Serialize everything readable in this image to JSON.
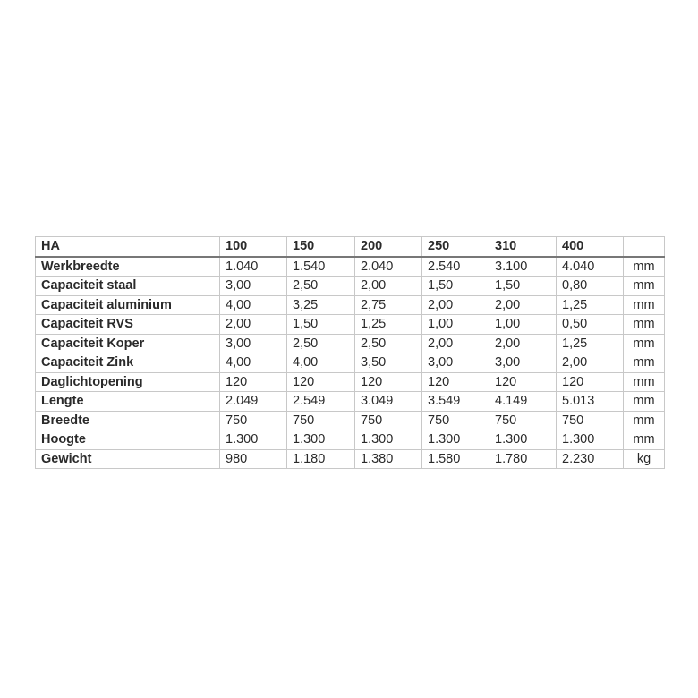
{
  "table": {
    "header": [
      "HA",
      "100",
      "150",
      "200",
      "250",
      "310",
      "400",
      ""
    ],
    "rows": [
      {
        "label": "Werkbreedte",
        "values": [
          "1.040",
          "1.540",
          "2.040",
          "2.540",
          "3.100",
          "4.040"
        ],
        "unit": "mm"
      },
      {
        "label": "Capaciteit staal",
        "values": [
          "3,00",
          "2,50",
          "2,00",
          "1,50",
          "1,50",
          "0,80"
        ],
        "unit": "mm"
      },
      {
        "label": "Capaciteit aluminium",
        "values": [
          "4,00",
          "3,25",
          "2,75",
          "2,00",
          "2,00",
          "1,25"
        ],
        "unit": "mm"
      },
      {
        "label": "Capaciteit RVS",
        "values": [
          "2,00",
          "1,50",
          "1,25",
          "1,00",
          "1,00",
          "0,50"
        ],
        "unit": "mm"
      },
      {
        "label": "Capaciteit Koper",
        "values": [
          "3,00",
          "2,50",
          "2,50",
          "2,00",
          "2,00",
          "1,25"
        ],
        "unit": "mm"
      },
      {
        "label": "Capaciteit Zink",
        "values": [
          "4,00",
          "4,00",
          "3,50",
          "3,00",
          "3,00",
          "2,00"
        ],
        "unit": "mm"
      },
      {
        "label": "Daglichtopening",
        "values": [
          "120",
          "120",
          "120",
          "120",
          "120",
          "120"
        ],
        "unit": "mm"
      },
      {
        "label": "Lengte",
        "values": [
          "2.049",
          "2.549",
          "3.049",
          "3.549",
          "4.149",
          "5.013"
        ],
        "unit": "mm"
      },
      {
        "label": "Breedte",
        "values": [
          "750",
          "750",
          "750",
          "750",
          "750",
          "750"
        ],
        "unit": "mm"
      },
      {
        "label": "Hoogte",
        "values": [
          "1.300",
          "1.300",
          "1.300",
          "1.300",
          "1.300",
          "1.300"
        ],
        "unit": "mm"
      },
      {
        "label": "Gewicht",
        "values": [
          "980",
          "1.180",
          "1.380",
          "1.580",
          "1.780",
          "2.230"
        ],
        "unit": "kg"
      }
    ]
  }
}
